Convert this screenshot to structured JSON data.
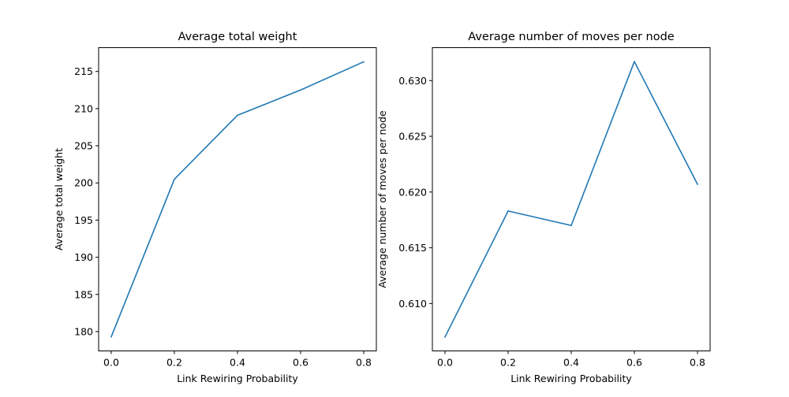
{
  "chart_data": [
    {
      "type": "line",
      "title": "Average total weight",
      "xlabel": "Link Rewiring Probability",
      "ylabel": "Average total weight",
      "x": [
        0.0,
        0.2,
        0.4,
        0.6,
        0.8
      ],
      "series": [
        {
          "values": [
            179.3,
            200.5,
            209.1,
            212.5,
            216.3
          ]
        }
      ],
      "xlim": [
        -0.04,
        0.84
      ],
      "ylim": [
        177.4,
        218.2
      ],
      "xticks": [
        0.0,
        0.2,
        0.4,
        0.6,
        0.8
      ],
      "xtick_labels": [
        "0.0",
        "0.2",
        "0.4",
        "0.6",
        "0.8"
      ],
      "yticks": [
        180,
        185,
        190,
        195,
        200,
        205,
        210,
        215
      ],
      "ytick_labels": [
        "180",
        "185",
        "190",
        "195",
        "200",
        "205",
        "210",
        "215"
      ],
      "grid": false,
      "color": "#1f77b4"
    },
    {
      "type": "line",
      "title": "Average number of moves per node",
      "xlabel": "Link Rewiring Probability",
      "ylabel": "Average number of moves per node",
      "x": [
        0.0,
        0.2,
        0.4,
        0.6,
        0.8
      ],
      "series": [
        {
          "values": [
            0.607,
            0.6183,
            0.617,
            0.6317,
            0.6207
          ]
        }
      ],
      "xlim": [
        -0.04,
        0.84
      ],
      "ylim": [
        0.60575,
        0.63295
      ],
      "xticks": [
        0.0,
        0.2,
        0.4,
        0.6,
        0.8
      ],
      "xtick_labels": [
        "0.0",
        "0.2",
        "0.4",
        "0.6",
        "0.8"
      ],
      "yticks": [
        0.61,
        0.615,
        0.62,
        0.625,
        0.63
      ],
      "ytick_labels": [
        "0.610",
        "0.615",
        "0.620",
        "0.625",
        "0.630"
      ],
      "grid": false,
      "color": "#1f77b4"
    }
  ]
}
